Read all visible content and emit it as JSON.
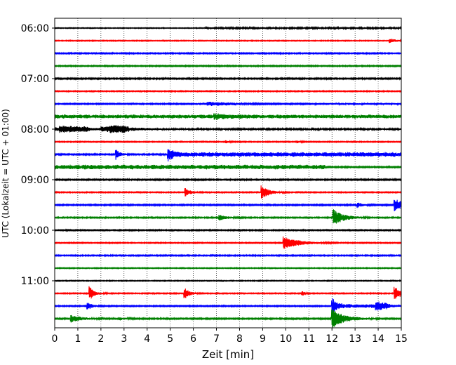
{
  "chart_data": {
    "type": "line",
    "chart_kind": "helicorder",
    "xlabel": "Zeit  [min]",
    "ylabel": "UTC (Lokalzeit = UTC + 01:00)",
    "xlim": [
      0,
      15
    ],
    "x_ticks": [
      0,
      1,
      2,
      3,
      4,
      5,
      6,
      7,
      8,
      9,
      10,
      11,
      12,
      13,
      14,
      15
    ],
    "x_tick_labels": [
      "0",
      "1",
      "2",
      "3",
      "4",
      "5",
      "6",
      "7",
      "8",
      "9",
      "10",
      "11",
      "12",
      "13",
      "14",
      "15"
    ],
    "y_tick_labels": [
      "06:00",
      "07:00",
      "08:00",
      "09:00",
      "10:00",
      "11:00"
    ],
    "y_tick_rows": [
      0,
      4,
      8,
      12,
      16,
      20
    ],
    "grid": "vertical dotted at each minute",
    "row_interval_min": 15,
    "color_cycle": [
      "#000000",
      "#ff0000",
      "#0000ff",
      "#008000"
    ],
    "rows": [
      {
        "start": "06:00",
        "noise": 0.6,
        "events": [
          {
            "t": 8.7,
            "a": 0.8,
            "d": 0.2
          }
        ],
        "bursts": [
          [
            6.5,
            15,
            0.8
          ]
        ]
      },
      {
        "start": "06:15",
        "noise": 0.7,
        "events": [
          {
            "t": 14.5,
            "a": 2.8,
            "d": 0.3
          }
        ],
        "bursts": []
      },
      {
        "start": "06:30",
        "noise": 0.9,
        "events": [],
        "bursts": []
      },
      {
        "start": "06:45",
        "noise": 0.9,
        "events": [],
        "bursts": []
      },
      {
        "start": "07:00",
        "noise": 1.0,
        "events": [],
        "bursts": []
      },
      {
        "start": "07:15",
        "noise": 0.8,
        "events": [],
        "bursts": []
      },
      {
        "start": "07:30",
        "noise": 0.9,
        "events": [
          {
            "t": 6.6,
            "a": 1.5,
            "d": 1.2
          }
        ],
        "bursts": [
          [
            6.0,
            7.8,
            1.0
          ],
          [
            11.0,
            15,
            0.8
          ]
        ]
      },
      {
        "start": "07:45",
        "noise": 1.0,
        "events": [
          {
            "t": 6.9,
            "a": 2.5,
            "d": 0.5
          }
        ],
        "bursts": [
          [
            0,
            15,
            2.0
          ]
        ]
      },
      {
        "start": "08:00",
        "noise": 1.4,
        "events": [
          {
            "t": 0.2,
            "a": 2.5,
            "d": 1.2
          },
          {
            "t": 2.4,
            "a": 3.0,
            "d": 0.8
          }
        ],
        "bursts": [
          [
            0,
            1.5,
            2.0
          ],
          [
            2.0,
            3.2,
            2.5
          ]
        ]
      },
      {
        "start": "08:15",
        "noise": 0.8,
        "events": [
          {
            "t": 7.4,
            "a": 2.5,
            "d": 0.1
          },
          {
            "t": 10.5,
            "a": 2.0,
            "d": 0.1
          }
        ],
        "bursts": []
      },
      {
        "start": "08:30",
        "noise": 1.0,
        "events": [
          {
            "t": 2.65,
            "a": 8,
            "d": 0.15
          },
          {
            "t": 4.9,
            "a": 8,
            "d": 0.2
          }
        ],
        "bursts": [
          [
            4.9,
            15,
            2.5
          ]
        ]
      },
      {
        "start": "08:45",
        "noise": 1.0,
        "events": [],
        "bursts": [
          [
            0,
            11.7,
            2.5
          ]
        ]
      },
      {
        "start": "09:00",
        "noise": 1.0,
        "events": [],
        "bursts": []
      },
      {
        "start": "09:15",
        "noise": 0.8,
        "events": [
          {
            "t": 5.65,
            "a": 6,
            "d": 0.2
          },
          {
            "t": 8.95,
            "a": 10,
            "d": 0.3
          }
        ],
        "bursts": []
      },
      {
        "start": "09:30",
        "noise": 1.0,
        "events": [
          {
            "t": 13.1,
            "a": 3.5,
            "d": 0.2
          },
          {
            "t": 14.7,
            "a": 9,
            "d": 0.4
          }
        ],
        "bursts": []
      },
      {
        "start": "09:45",
        "noise": 0.9,
        "events": [
          {
            "t": 7.1,
            "a": 4.5,
            "d": 0.3
          },
          {
            "t": 12.05,
            "a": 12,
            "d": 0.4
          }
        ],
        "bursts": []
      },
      {
        "start": "10:00",
        "noise": 0.9,
        "events": [],
        "bursts": []
      },
      {
        "start": "10:15",
        "noise": 0.8,
        "events": [
          {
            "t": 9.9,
            "a": 9,
            "d": 0.6
          }
        ],
        "bursts": []
      },
      {
        "start": "10:30",
        "noise": 0.9,
        "events": [],
        "bursts": []
      },
      {
        "start": "10:45",
        "noise": 0.7,
        "events": [],
        "bursts": []
      },
      {
        "start": "11:00",
        "noise": 0.7,
        "events": [],
        "bursts": []
      },
      {
        "start": "11:15",
        "noise": 0.8,
        "events": [
          {
            "t": 1.5,
            "a": 10,
            "d": 0.2
          },
          {
            "t": 5.6,
            "a": 9,
            "d": 0.2
          },
          {
            "t": 10.7,
            "a": 4,
            "d": 0.1
          },
          {
            "t": 14.7,
            "a": 10,
            "d": 0.3
          }
        ],
        "bursts": []
      },
      {
        "start": "11:30",
        "noise": 0.9,
        "events": [
          {
            "t": 1.4,
            "a": 6,
            "d": 0.2
          },
          {
            "t": 13.9,
            "a": 5,
            "d": 0.5
          },
          {
            "t": 12.0,
            "a": 10,
            "d": 0.2
          }
        ],
        "bursts": [
          [
            12.0,
            14.5,
            2.0
          ]
        ]
      },
      {
        "start": "11:45",
        "noise": 1.0,
        "events": [
          {
            "t": 0.7,
            "a": 5,
            "d": 0.4
          },
          {
            "t": 2.8,
            "a": 2,
            "d": 0.2
          },
          {
            "t": 12.0,
            "a": 14,
            "d": 0.5
          }
        ],
        "bursts": []
      }
    ]
  }
}
